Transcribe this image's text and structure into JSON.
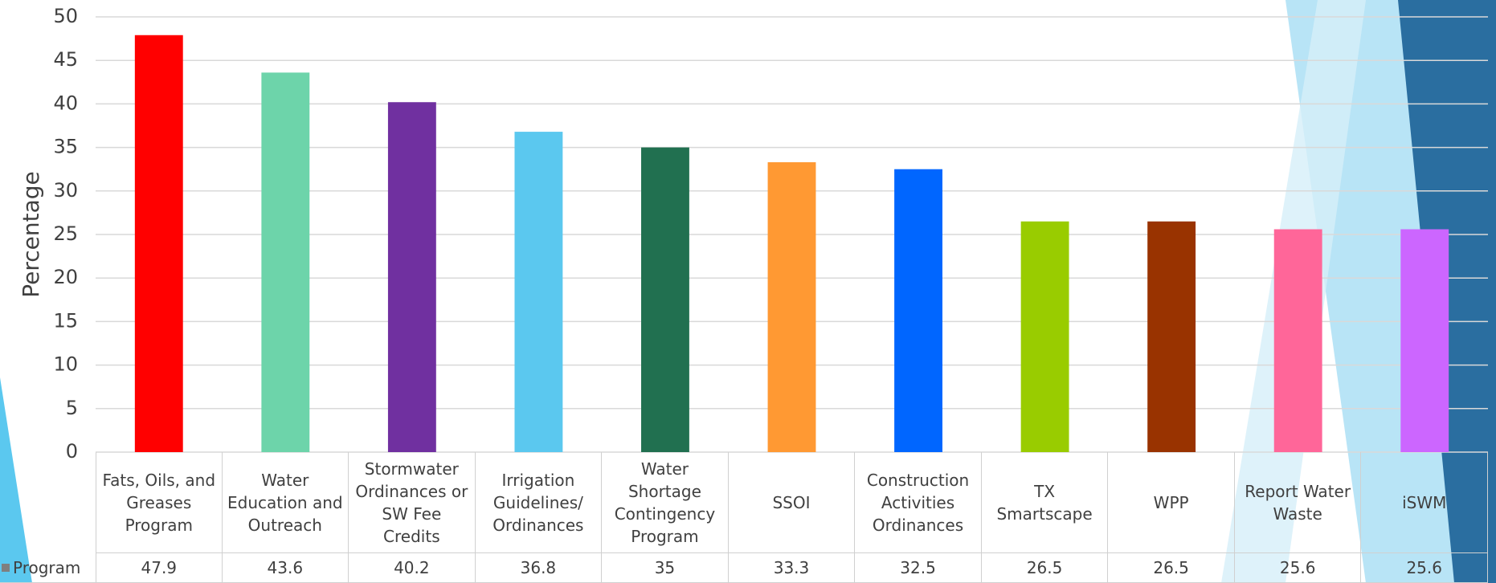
{
  "chart_data": {
    "type": "bar",
    "y_label": "Percentage",
    "categories": [
      "Fats, Oils, and Greases Program",
      "Water Education and Outreach",
      "Stormwater Ordinances or SW Fee Credits",
      "Irrigation Guidelines/ Ordinances",
      "Water Shortage Contingency Program",
      "SSOI",
      "Construction Activities Ordinances",
      "TX Smartscape",
      "WPP",
      "Report Water Waste",
      "iSWM"
    ],
    "series": [
      {
        "name": "Program",
        "color": "#7f7f7f",
        "colors": [
          "#ff0000",
          "#6dd4aa",
          "#7030a0",
          "#5bc8ef",
          "#217050",
          "#ff9933",
          "#0066ff",
          "#99cc00",
          "#993300",
          "#ff6699",
          "#cc66ff"
        ],
        "values": [
          47.9,
          43.6,
          40.2,
          36.8,
          35,
          33.3,
          32.5,
          26.5,
          26.5,
          25.6,
          25.6
        ]
      }
    ],
    "ylim": [
      0,
      50
    ],
    "yticks": [
      0,
      5,
      10,
      15,
      20,
      25,
      30,
      35,
      40,
      45,
      50
    ],
    "grid": true
  }
}
